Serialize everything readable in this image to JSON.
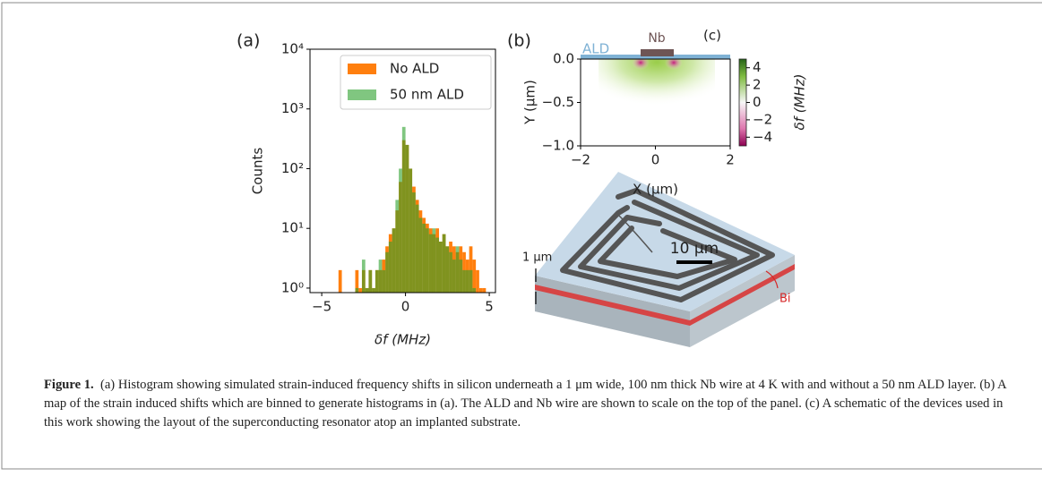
{
  "chart_data": [
    {
      "type": "histogram",
      "panel_label": "(a)",
      "xlabel": "δf (MHz)",
      "ylabel": "Counts",
      "log_y": true,
      "legend": "upper right",
      "bins": [
        -4.2,
        -4,
        -3.8,
        -3.6,
        -3.4,
        -3.2,
        -3,
        -2.8,
        -2.6,
        -2.4,
        -2.2,
        -2,
        -1.8,
        -1.6,
        -1.4,
        -1.2,
        -1,
        -0.8,
        -0.6,
        -0.4,
        -0.2,
        0,
        0.2,
        0.4,
        0.6,
        0.8,
        1,
        1.2,
        1.4,
        1.6,
        1.8,
        2,
        2.2,
        2.4,
        2.6,
        2.8,
        3,
        3.2,
        3.4,
        3.6,
        3.8,
        4,
        4.2,
        4.4,
        4.6,
        4.8,
        5
      ],
      "series": [
        {
          "name": "No ALD",
          "color": "#ff7f0e",
          "opacity": 1,
          "values": [
            0,
            2,
            0,
            0,
            0,
            0,
            2,
            1,
            2,
            1,
            2,
            1,
            2,
            2,
            3,
            5,
            8,
            10,
            20,
            60,
            300,
            250,
            100,
            50,
            30,
            20,
            15,
            12,
            10,
            8,
            10,
            6,
            8,
            5,
            6,
            5,
            4,
            5,
            4,
            3,
            5,
            3,
            2,
            1,
            1,
            0
          ]
        },
        {
          "name": "50 nm ALD",
          "color": "#2ca02c",
          "opacity": 0.6,
          "values": [
            0,
            0,
            0,
            0,
            0,
            0,
            1,
            0,
            3,
            1,
            2,
            1,
            2,
            3,
            2,
            4,
            6,
            10,
            30,
            100,
            500,
            250,
            100,
            40,
            25,
            15,
            12,
            10,
            8,
            10,
            7,
            6,
            8,
            5,
            4,
            3,
            5,
            3,
            2,
            2,
            2,
            1,
            0,
            0,
            0,
            0
          ]
        }
      ],
      "xlim": [
        -5.7,
        5.37
      ],
      "xticks": [
        {
          "value": -5,
          "label": "−5"
        },
        0,
        5
      ],
      "ylim": [
        0.84,
        10000
      ],
      "yticks": [
        {
          "value": 1,
          "label": "10⁰"
        },
        {
          "value": 10,
          "label": "10¹"
        },
        {
          "value": 100,
          "label": "10²"
        },
        {
          "value": 1000,
          "label": "10³"
        },
        {
          "value": 10000,
          "label": "10⁴"
        }
      ]
    },
    {
      "type": "heatmap",
      "panel_label": "(b)",
      "xlabel": "X (µm)",
      "ylabel": "Y (µm)",
      "annotations": [
        "ALD",
        "Nb"
      ],
      "xlim": [
        -2,
        2
      ],
      "xticks": [
        {
          "value": -2,
          "label": "−2"
        },
        0,
        2
      ],
      "ylim": [
        -1,
        0
      ],
      "yticks": [
        {
          "value": 0,
          "label": "0.0"
        },
        {
          "value": -0.5,
          "label": "−0.5"
        },
        {
          "value": -1,
          "label": "−1.0"
        }
      ],
      "colorbar_label": "δf (MHz)",
      "clim": [
        -5,
        5
      ],
      "cticks": [
        4,
        2,
        0,
        {
          "value": -2,
          "label": "−2"
        },
        {
          "value": -4,
          "label": "−4"
        }
      ]
    }
  ],
  "schematic": {
    "panel_label": "(c)",
    "scale_bar": "10 µm",
    "thickness": "1 µm",
    "layer": "Bi"
  },
  "caption": {
    "label": "Figure 1.",
    "text": "(a) Histogram showing simulated strain-induced frequency shifts in silicon underneath a 1 μm wide, 100 nm thick Nb wire at 4 K with and without a 50 nm ALD layer. (b) A map of the strain induced shifts which are binned to generate histograms in (a). The ALD and Nb wire are shown to scale on the top of the panel. (c) A schematic of the devices used in this work showing the layout of the superconducting resonator atop an implanted substrate."
  }
}
